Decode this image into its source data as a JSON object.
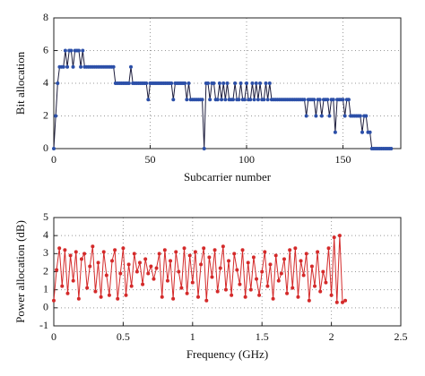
{
  "chart_data": [
    {
      "type": "line",
      "xlabel": "Subcarrier number",
      "ylabel": "Bit allocation",
      "xlim": [
        0,
        180
      ],
      "xticks": [
        0,
        50,
        100,
        150
      ],
      "ylim": [
        0,
        8
      ],
      "yticks": [
        0,
        2,
        4,
        6,
        8
      ],
      "grid": true,
      "x": [
        0,
        1,
        2,
        3,
        4,
        5,
        6,
        7,
        8,
        9,
        10,
        11,
        12,
        13,
        14,
        15,
        16,
        17,
        18,
        19,
        20,
        21,
        22,
        23,
        24,
        25,
        26,
        27,
        28,
        29,
        30,
        31,
        32,
        33,
        34,
        35,
        36,
        37,
        38,
        39,
        40,
        41,
        42,
        43,
        44,
        45,
        46,
        47,
        48,
        49,
        50,
        51,
        52,
        53,
        54,
        55,
        56,
        57,
        58,
        59,
        60,
        61,
        62,
        63,
        64,
        65,
        66,
        67,
        68,
        69,
        70,
        71,
        72,
        73,
        74,
        75,
        76,
        77,
        78,
        79,
        80,
        81,
        82,
        83,
        84,
        85,
        86,
        87,
        88,
        89,
        90,
        91,
        92,
        93,
        94,
        95,
        96,
        97,
        98,
        99,
        100,
        101,
        102,
        103,
        104,
        105,
        106,
        107,
        108,
        109,
        110,
        111,
        112,
        113,
        114,
        115,
        116,
        117,
        118,
        119,
        120,
        121,
        122,
        123,
        124,
        125,
        126,
        127,
        128,
        129,
        130,
        131,
        132,
        133,
        134,
        135,
        136,
        137,
        138,
        139,
        140,
        141,
        142,
        143,
        144,
        145,
        146,
        147,
        148,
        149,
        150,
        151,
        152,
        153,
        154,
        155,
        156,
        157,
        158,
        159,
        160,
        161,
        162,
        163,
        164,
        165,
        166,
        167,
        168,
        169,
        170,
        171,
        172,
        173,
        174,
        175
      ],
      "series": [
        {
          "color": "#2b4fa8",
          "values": [
            0,
            2,
            4,
            5,
            5,
            5,
            6,
            5,
            6,
            6,
            5,
            6,
            6,
            6,
            5,
            6,
            5,
            5,
            5,
            5,
            5,
            5,
            5,
            5,
            5,
            5,
            5,
            5,
            5,
            5,
            5,
            5,
            4,
            4,
            4,
            4,
            4,
            4,
            4,
            4,
            5,
            4,
            4,
            4,
            4,
            4,
            4,
            4,
            4,
            3,
            4,
            4,
            4,
            4,
            4,
            4,
            4,
            4,
            4,
            4,
            4,
            4,
            3,
            4,
            4,
            4,
            4,
            4,
            4,
            3,
            4,
            3,
            3,
            3,
            3,
            3,
            3,
            3,
            0,
            4,
            4,
            3,
            4,
            4,
            3,
            3,
            4,
            3,
            4,
            3,
            4,
            3,
            3,
            3,
            4,
            3,
            3,
            4,
            3,
            3,
            4,
            3,
            3,
            4,
            3,
            4,
            3,
            4,
            3,
            3,
            4,
            3,
            4,
            3,
            3,
            3,
            3,
            3,
            3,
            3,
            3,
            3,
            3,
            3,
            3,
            3,
            3,
            3,
            3,
            3,
            3,
            2,
            3,
            3,
            3,
            3,
            2,
            3,
            3,
            2,
            3,
            3,
            3,
            2,
            3,
            3,
            1,
            3,
            3,
            3,
            3,
            2,
            3,
            3,
            2,
            2,
            2,
            2,
            2,
            2,
            1,
            2,
            2,
            1,
            1,
            0,
            0,
            0,
            0,
            0,
            0,
            0,
            0,
            0,
            0,
            0
          ]
        }
      ]
    },
    {
      "type": "line",
      "xlabel": "Frequency (GHz)",
      "ylabel": "Power allocation (dB)",
      "xlim": [
        0,
        2.5
      ],
      "xticks": [
        0,
        0.5,
        1,
        1.5,
        2,
        2.5
      ],
      "ylim": [
        -1,
        5
      ],
      "yticks": [
        -1,
        0,
        1,
        2,
        3,
        4,
        5
      ],
      "grid": true,
      "x": [
        0,
        0.02,
        0.04,
        0.06,
        0.08,
        0.1,
        0.12,
        0.14,
        0.16,
        0.18,
        0.2,
        0.22,
        0.24,
        0.26,
        0.28,
        0.3,
        0.32,
        0.34,
        0.36,
        0.38,
        0.4,
        0.42,
        0.44,
        0.46,
        0.48,
        0.5,
        0.52,
        0.54,
        0.56,
        0.58,
        0.6,
        0.62,
        0.64,
        0.66,
        0.68,
        0.7,
        0.72,
        0.74,
        0.76,
        0.78,
        0.8,
        0.82,
        0.84,
        0.86,
        0.88,
        0.9,
        0.92,
        0.94,
        0.96,
        0.98,
        1,
        1.02,
        1.04,
        1.06,
        1.08,
        1.1,
        1.12,
        1.14,
        1.16,
        1.18,
        1.2,
        1.22,
        1.24,
        1.26,
        1.28,
        1.3,
        1.32,
        1.34,
        1.36,
        1.38,
        1.4,
        1.42,
        1.44,
        1.46,
        1.48,
        1.5,
        1.52,
        1.54,
        1.56,
        1.58,
        1.6,
        1.62,
        1.64,
        1.66,
        1.68,
        1.7,
        1.72,
        1.74,
        1.76,
        1.78,
        1.8,
        1.82,
        1.84,
        1.86,
        1.88,
        1.9,
        1.92,
        1.94,
        1.96,
        1.98,
        2,
        2.02,
        2.04,
        2.06,
        2.08,
        2.1
      ],
      "series": [
        {
          "color": "#d42a2a",
          "values": [
            0.4,
            2.1,
            3.3,
            1.2,
            3.2,
            0.8,
            2.9,
            1.5,
            3.1,
            0.5,
            2.7,
            3.0,
            1.1,
            2.3,
            3.4,
            0.9,
            2.5,
            0.6,
            3.1,
            1.8,
            0.7,
            2.6,
            3.2,
            0.5,
            1.9,
            3.3,
            0.7,
            2.4,
            1.2,
            3.0,
            2.0,
            2.5,
            1.3,
            2.7,
            1.9,
            2.3,
            1.6,
            2.2,
            3.0,
            0.6,
            3.2,
            1.5,
            2.6,
            0.5,
            3.1,
            2.0,
            1.1,
            3.3,
            0.8,
            2.9,
            1.4,
            3.1,
            0.6,
            2.4,
            3.3,
            0.4,
            2.8,
            1.7,
            3.2,
            0.9,
            2.2,
            3.4,
            1.0,
            2.6,
            0.7,
            3.0,
            2.1,
            1.3,
            3.2,
            0.6,
            2.5,
            1.0,
            2.8,
            1.6,
            0.7,
            2.0,
            3.1,
            1.2,
            2.4,
            0.5,
            2.9,
            1.5,
            1.9,
            2.7,
            0.8,
            3.2,
            1.1,
            3.3,
            0.6,
            2.6,
            1.8,
            3.0,
            0.4,
            2.3,
            1.2,
            3.1,
            0.9,
            2.0,
            1.4,
            3.3,
            0.7,
            3.9,
            0.3,
            4.0,
            0.3,
            0.4
          ]
        }
      ]
    }
  ]
}
